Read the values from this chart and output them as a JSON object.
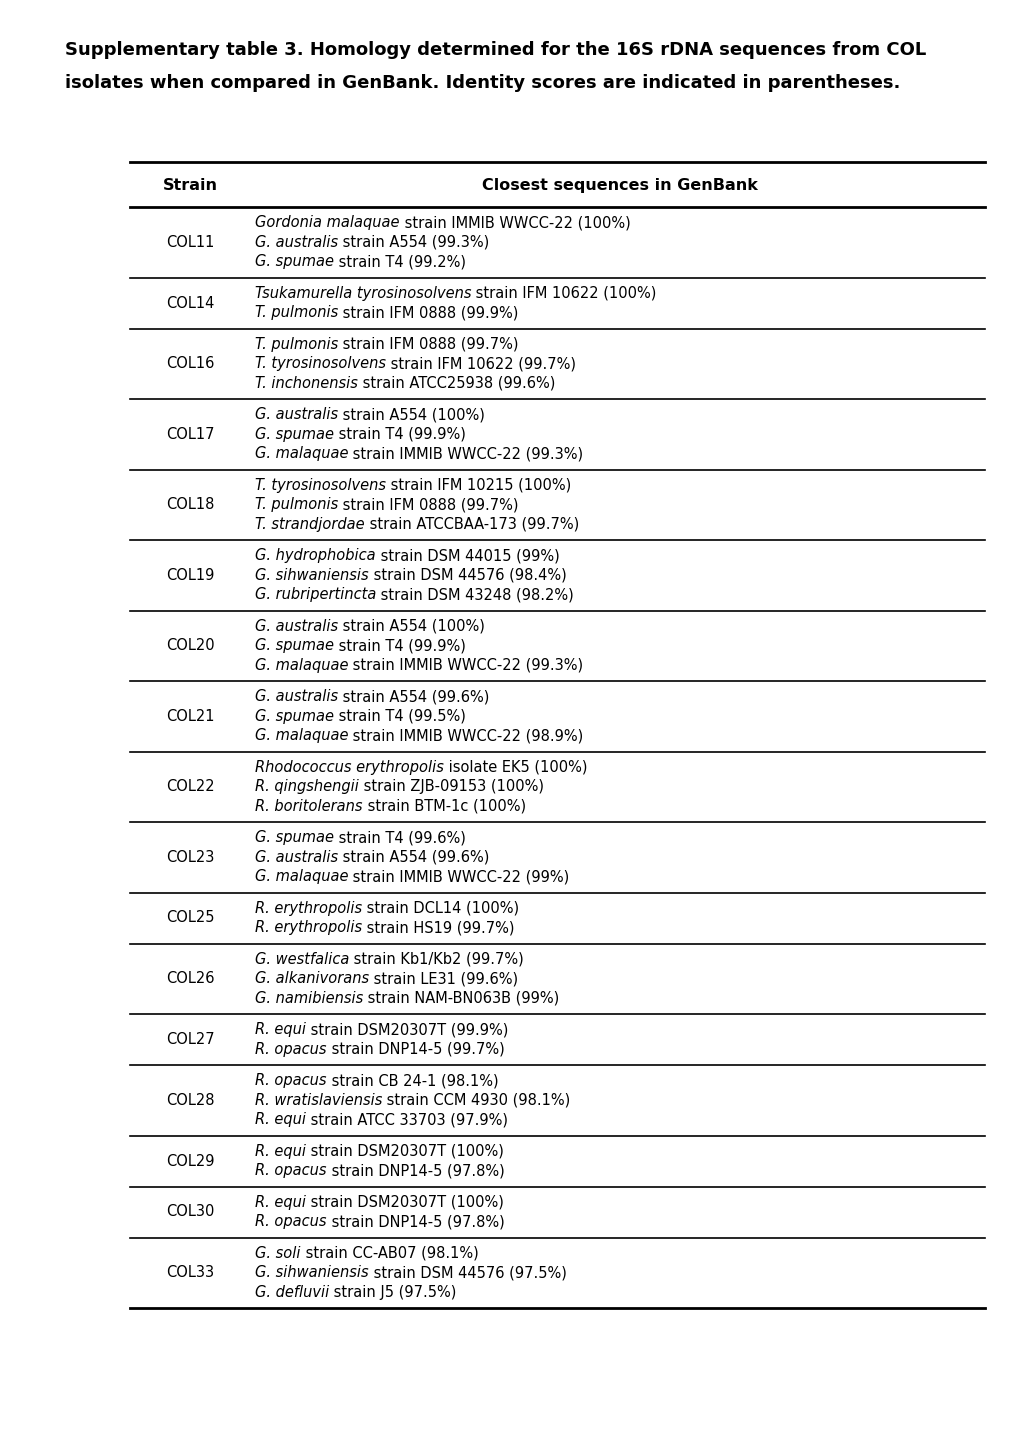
{
  "title_line1": "Supplementary table 3. Homology determined for the 16S rDNA sequences from COL",
  "title_line2": "isolates when compared in GenBank. Identity scores are indicated in parentheses.",
  "col_header_strain": "Strain",
  "col_header_sequences": "Closest sequences in GenBank",
  "rows": [
    {
      "strain": "COL11",
      "sequences": [
        [
          {
            "t": "Gordonia malaquae",
            "i": true
          },
          {
            "t": " strain IMMIB WWCC-22 (100%)",
            "i": false
          }
        ],
        [
          {
            "t": "G. australis",
            "i": true
          },
          {
            "t": " strain A554 (99.3%)",
            "i": false
          }
        ],
        [
          {
            "t": "G. spumae",
            "i": true
          },
          {
            "t": " strain T4 (99.2%)",
            "i": false
          }
        ]
      ]
    },
    {
      "strain": "COL14",
      "sequences": [
        [
          {
            "t": "Tsukamurella tyrosinosolvens",
            "i": true
          },
          {
            "t": " strain IFM 10622 (100%)",
            "i": false
          }
        ],
        [
          {
            "t": "T. pulmonis",
            "i": true
          },
          {
            "t": " strain IFM 0888 (99.9%)",
            "i": false
          }
        ]
      ]
    },
    {
      "strain": "COL16",
      "sequences": [
        [
          {
            "t": "T. pulmonis",
            "i": true
          },
          {
            "t": " strain IFM 0888 (99.7%)",
            "i": false
          }
        ],
        [
          {
            "t": "T. tyrosinosolvens",
            "i": true
          },
          {
            "t": " strain IFM 10622 (99.7%)",
            "i": false
          }
        ],
        [
          {
            "t": "T. inchonensis",
            "i": true
          },
          {
            "t": " strain ATCC25938 (99.6%)",
            "i": false
          }
        ]
      ]
    },
    {
      "strain": "COL17",
      "sequences": [
        [
          {
            "t": "G. australis",
            "i": true
          },
          {
            "t": " strain A554 (100%)",
            "i": false
          }
        ],
        [
          {
            "t": "G. spumae",
            "i": true
          },
          {
            "t": " strain T4 (99.9%)",
            "i": false
          }
        ],
        [
          {
            "t": "G. malaquae",
            "i": true
          },
          {
            "t": " strain IMMIB WWCC-22 (99.3%)",
            "i": false
          }
        ]
      ]
    },
    {
      "strain": "COL18",
      "sequences": [
        [
          {
            "t": "T. tyrosinosolvens",
            "i": true
          },
          {
            "t": " strain IFM 10215 (100%)",
            "i": false
          }
        ],
        [
          {
            "t": "T. pulmonis",
            "i": true
          },
          {
            "t": " strain IFM 0888 (99.7%)",
            "i": false
          }
        ],
        [
          {
            "t": "T. strandjordae",
            "i": true
          },
          {
            "t": " strain ATCCBAA-173 (99.7%)",
            "i": false
          }
        ]
      ]
    },
    {
      "strain": "COL19",
      "sequences": [
        [
          {
            "t": "G. hydrophobica",
            "i": true
          },
          {
            "t": " strain DSM 44015 (99%)",
            "i": false
          }
        ],
        [
          {
            "t": "G. sihwaniensis",
            "i": true
          },
          {
            "t": " strain DSM 44576 (98.4%)",
            "i": false
          }
        ],
        [
          {
            "t": "G. rubripertincta",
            "i": true
          },
          {
            "t": " strain DSM 43248 (98.2%)",
            "i": false
          }
        ]
      ]
    },
    {
      "strain": "COL20",
      "sequences": [
        [
          {
            "t": "G. australis",
            "i": true
          },
          {
            "t": " strain A554 (100%)",
            "i": false
          }
        ],
        [
          {
            "t": "G. spumae",
            "i": true
          },
          {
            "t": " strain T4 (99.9%)",
            "i": false
          }
        ],
        [
          {
            "t": "G. malaquae",
            "i": true
          },
          {
            "t": " strain IMMIB WWCC-22 (99.3%)",
            "i": false
          }
        ]
      ]
    },
    {
      "strain": "COL21",
      "sequences": [
        [
          {
            "t": "G. australis",
            "i": true
          },
          {
            "t": " strain A554 (99.6%)",
            "i": false
          }
        ],
        [
          {
            "t": "G. spumae",
            "i": true
          },
          {
            "t": " strain T4 (99.5%)",
            "i": false
          }
        ],
        [
          {
            "t": "G. malaquae",
            "i": true
          },
          {
            "t": " strain IMMIB WWCC-22 (98.9%)",
            "i": false
          }
        ]
      ]
    },
    {
      "strain": "COL22",
      "sequences": [
        [
          {
            "t": "Rhodococcus erythropolis",
            "i": true
          },
          {
            "t": " isolate EK5 (100%)",
            "i": false
          }
        ],
        [
          {
            "t": "R. qingshengii",
            "i": true
          },
          {
            "t": " strain ZJB-09153 (100%)",
            "i": false
          }
        ],
        [
          {
            "t": "R. boritolerans",
            "i": true
          },
          {
            "t": " strain BTM-1c (100%)",
            "i": false
          }
        ]
      ]
    },
    {
      "strain": "COL23",
      "sequences": [
        [
          {
            "t": "G. spumae",
            "i": true
          },
          {
            "t": " strain T4 (99.6%)",
            "i": false
          }
        ],
        [
          {
            "t": "G. australis",
            "i": true
          },
          {
            "t": " strain A554 (99.6%)",
            "i": false
          }
        ],
        [
          {
            "t": "G. malaquae",
            "i": true
          },
          {
            "t": " strain IMMIB WWCC-22 (99%)",
            "i": false
          }
        ]
      ]
    },
    {
      "strain": "COL25",
      "sequences": [
        [
          {
            "t": "R. erythropolis",
            "i": true
          },
          {
            "t": " strain DCL14 (100%)",
            "i": false
          }
        ],
        [
          {
            "t": "R. erythropolis",
            "i": true
          },
          {
            "t": " strain HS19 (99.7%)",
            "i": false
          }
        ]
      ]
    },
    {
      "strain": "COL26",
      "sequences": [
        [
          {
            "t": "G. westfalica",
            "i": true
          },
          {
            "t": " strain Kb1/Kb2 (99.7%)",
            "i": false
          }
        ],
        [
          {
            "t": "G. alkanivorans",
            "i": true
          },
          {
            "t": " strain LE31 (99.6%)",
            "i": false
          }
        ],
        [
          {
            "t": "G. namibiensis",
            "i": true
          },
          {
            "t": " strain NAM-BN063B (99%)",
            "i": false
          }
        ]
      ]
    },
    {
      "strain": "COL27",
      "sequences": [
        [
          {
            "t": "R. equi",
            "i": true
          },
          {
            "t": " strain DSM20307T (99.9%)",
            "i": false
          }
        ],
        [
          {
            "t": "R. opacus",
            "i": true
          },
          {
            "t": " strain DNP14-5 (99.7%)",
            "i": false
          }
        ]
      ]
    },
    {
      "strain": "COL28",
      "sequences": [
        [
          {
            "t": "R. opacus",
            "i": true
          },
          {
            "t": " strain CB 24-1 (98.1%)",
            "i": false
          }
        ],
        [
          {
            "t": "R. wratislaviensis",
            "i": true
          },
          {
            "t": " strain CCM 4930 (98.1%)",
            "i": false
          }
        ],
        [
          {
            "t": "R. equi",
            "i": true
          },
          {
            "t": " strain ATCC 33703 (97.9%)",
            "i": false
          }
        ]
      ]
    },
    {
      "strain": "COL29",
      "sequences": [
        [
          {
            "t": "R. equi",
            "i": true
          },
          {
            "t": " strain DSM20307T (100%)",
            "i": false
          }
        ],
        [
          {
            "t": "R. opacus",
            "i": true
          },
          {
            "t": " strain DNP14-5 (97.8%)",
            "i": false
          }
        ]
      ]
    },
    {
      "strain": "COL30",
      "sequences": [
        [
          {
            "t": "R. equi",
            "i": true
          },
          {
            "t": " strain DSM20307T (100%)",
            "i": false
          }
        ],
        [
          {
            "t": "R. opacus",
            "i": true
          },
          {
            "t": " strain DNP14-5 (97.8%)",
            "i": false
          }
        ]
      ]
    },
    {
      "strain": "COL33",
      "sequences": [
        [
          {
            "t": "G. soli",
            "i": true
          },
          {
            "t": " strain CC-AB07 (98.1%)",
            "i": false
          }
        ],
        [
          {
            "t": "G. sihwaniensis",
            "i": true
          },
          {
            "t": " strain DSM 44576 (97.5%)",
            "i": false
          }
        ],
        [
          {
            "t": "G. defluvii",
            "i": true
          },
          {
            "t": " strain J5 (97.5%)",
            "i": false
          }
        ]
      ]
    }
  ],
  "bg_color": "#ffffff",
  "text_color": "#000000"
}
